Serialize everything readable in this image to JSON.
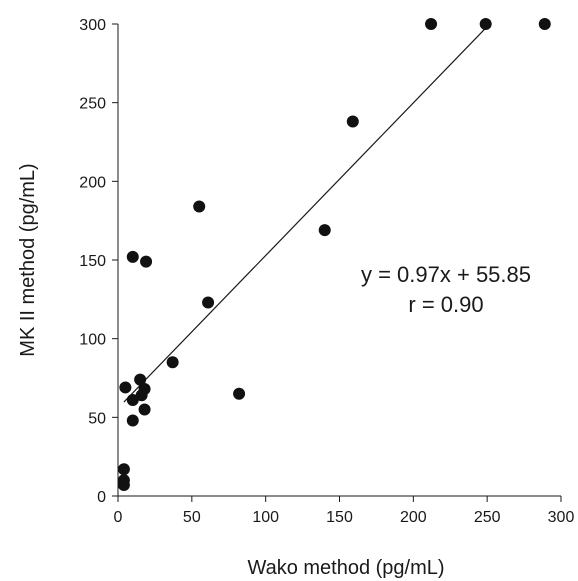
{
  "chart_data": {
    "type": "scatter",
    "title": "",
    "xlabel": "Wako method (pg/mL)",
    "ylabel": "MK II method (pg/mL)",
    "xlim": [
      0,
      300
    ],
    "ylim": [
      0,
      300
    ],
    "xticks": [
      0,
      50,
      100,
      150,
      200,
      250,
      300
    ],
    "yticks": [
      0,
      50,
      100,
      150,
      200,
      250,
      300
    ],
    "grid": false,
    "legend": "none",
    "point_color": "#111111",
    "points": [
      {
        "x": 212,
        "y": 300
      },
      {
        "x": 249,
        "y": 300
      },
      {
        "x": 289,
        "y": 300
      },
      {
        "x": 159,
        "y": 238
      },
      {
        "x": 55,
        "y": 184
      },
      {
        "x": 140,
        "y": 169
      },
      {
        "x": 10,
        "y": 152
      },
      {
        "x": 19,
        "y": 149
      },
      {
        "x": 61,
        "y": 123
      },
      {
        "x": 37,
        "y": 85
      },
      {
        "x": 15,
        "y": 74
      },
      {
        "x": 5,
        "y": 69
      },
      {
        "x": 18,
        "y": 68
      },
      {
        "x": 16,
        "y": 64
      },
      {
        "x": 82,
        "y": 65
      },
      {
        "x": 10,
        "y": 61
      },
      {
        "x": 18,
        "y": 55
      },
      {
        "x": 10,
        "y": 48
      },
      {
        "x": 4,
        "y": 17
      },
      {
        "x": 4,
        "y": 10
      },
      {
        "x": 4,
        "y": 7
      }
    ],
    "trendline": {
      "slope": 0.97,
      "intercept": 55.85,
      "x_range": [
        4,
        250
      ]
    },
    "annotations": [
      "y = 0.97x + 55.85",
      "r = 0.90"
    ]
  }
}
